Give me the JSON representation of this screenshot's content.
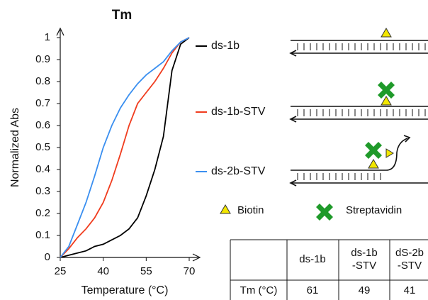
{
  "chart_data": {
    "type": "line",
    "title": "Tm",
    "x_label": "Temperature (°C)",
    "y_label": "Normalized Abs",
    "x": [
      25,
      28,
      31,
      34,
      37,
      40,
      43,
      46,
      49,
      52,
      55,
      58,
      61,
      64,
      67,
      70
    ],
    "series": [
      {
        "name": "ds-1b",
        "color": "#000000",
        "values": [
          0,
          0.01,
          0.02,
          0.03,
          0.05,
          0.06,
          0.08,
          0.1,
          0.13,
          0.18,
          0.28,
          0.4,
          0.55,
          0.85,
          0.97,
          1
        ]
      },
      {
        "name": "ds-1b-STV",
        "color": "#f03c1e",
        "values": [
          0,
          0.04,
          0.09,
          0.13,
          0.18,
          0.25,
          0.35,
          0.47,
          0.6,
          0.7,
          0.75,
          0.8,
          0.86,
          0.93,
          0.98,
          1
        ]
      },
      {
        "name": "ds-2b-STV",
        "color": "#3a8ff0",
        "values": [
          0,
          0.05,
          0.15,
          0.25,
          0.37,
          0.5,
          0.6,
          0.68,
          0.74,
          0.79,
          0.83,
          0.86,
          0.89,
          0.94,
          0.98,
          1
        ]
      }
    ],
    "xlim": [
      25,
      70
    ],
    "ylim": [
      0,
      1
    ],
    "xticks": [
      25,
      40,
      55,
      70
    ],
    "yticks": [
      0,
      0.1,
      0.2,
      0.3,
      0.4,
      0.5,
      0.6,
      0.7,
      0.8,
      0.9,
      1
    ]
  },
  "diagram": {
    "legend": [
      "Biotin",
      "Streptavidin"
    ]
  },
  "table": {
    "columns": [
      [
        "ds-1b"
      ],
      [
        "ds-1b",
        "-STV"
      ],
      [
        "dS-2b",
        "-STV"
      ]
    ],
    "rows": [
      {
        "label": "Tm (°C)",
        "values": [
          "61",
          "49",
          "41"
        ]
      }
    ]
  }
}
